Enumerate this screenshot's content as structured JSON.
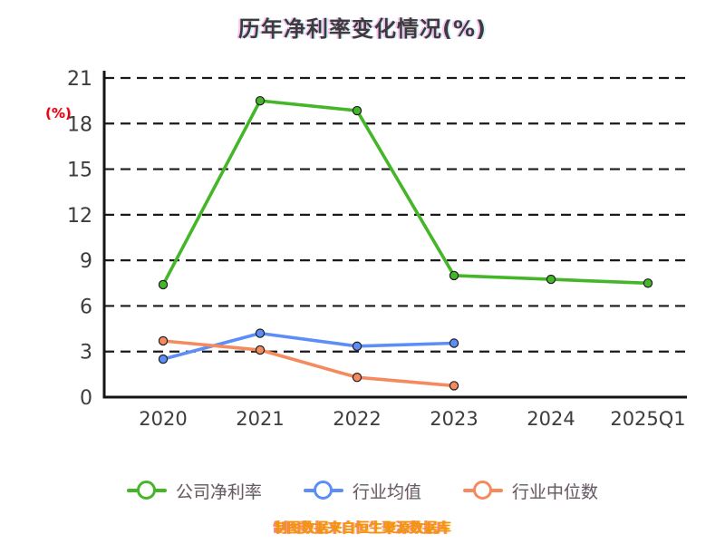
{
  "title": "历年净利率变化情况(%)",
  "footer": {
    "text": "制图数据来自恒生聚源数据库"
  },
  "colors": {
    "axis": "#141414",
    "grid": "#1a1a1a",
    "tick": "#3d3d3d",
    "title": "#3c3c3c",
    "legend_text": "#5f5f5f",
    "footer": "#f39800",
    "y_unit": "#e60012",
    "company": "#45b629",
    "industry_avg": "#5d8ef7",
    "industry_median": "#f58a5f"
  },
  "chart_data": {
    "type": "line",
    "title": "历年净利率变化情况(%)",
    "xlabel": "",
    "ylabel": "(%)",
    "categories": [
      "2020",
      "2021",
      "2022",
      "2023",
      "2024",
      "2025Q1"
    ],
    "yticks": [
      0,
      3,
      6,
      9,
      12,
      15,
      18,
      21
    ],
    "ylim": [
      0,
      21
    ],
    "grid": "horizontal-dashed",
    "legend_position": "bottom",
    "series": [
      {
        "name": "公司净利率",
        "color": "#45b629",
        "values": [
          7.4,
          19.5,
          18.85,
          8.0,
          7.75,
          7.5
        ]
      },
      {
        "name": "行业均值",
        "color": "#5d8ef7",
        "values": [
          2.5,
          4.2,
          3.35,
          3.55,
          null,
          null
        ]
      },
      {
        "name": "行业中位数",
        "color": "#f58a5f",
        "values": [
          3.7,
          3.1,
          1.3,
          0.75,
          null,
          null
        ]
      }
    ]
  }
}
